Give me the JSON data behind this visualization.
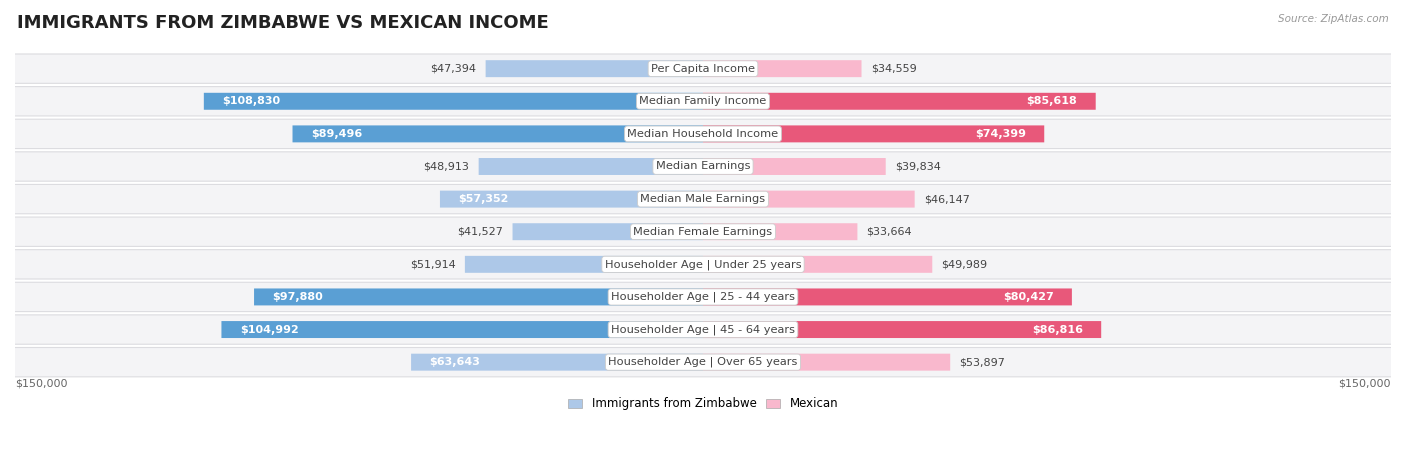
{
  "title": "IMMIGRANTS FROM ZIMBABWE VS MEXICAN INCOME",
  "source": "Source: ZipAtlas.com",
  "categories": [
    "Per Capita Income",
    "Median Family Income",
    "Median Household Income",
    "Median Earnings",
    "Median Male Earnings",
    "Median Female Earnings",
    "Householder Age | Under 25 years",
    "Householder Age | 25 - 44 years",
    "Householder Age | 45 - 64 years",
    "Householder Age | Over 65 years"
  ],
  "zimbabwe_values": [
    47394,
    108830,
    89496,
    48913,
    57352,
    41527,
    51914,
    97880,
    104992,
    63643
  ],
  "mexican_values": [
    34559,
    85618,
    74399,
    39834,
    46147,
    33664,
    49989,
    80427,
    86816,
    53897
  ],
  "zim_color_light": "#adc8e8",
  "zim_color_dark": "#5a9fd4",
  "mex_color_light": "#f9b8cd",
  "mex_color_dark": "#e8587a",
  "zim_threshold": 70000,
  "mex_threshold": 60000,
  "max_value": 150000,
  "zimbabwe_label": "Immigrants from Zimbabwe",
  "mexican_label": "Mexican",
  "xlabel_left": "$150,000",
  "xlabel_right": "$150,000",
  "bar_height": 0.52,
  "row_card_color": "#f4f4f6",
  "row_card_edge": "#dcdce0",
  "background_color": "#ffffff",
  "title_fontsize": 13,
  "label_fontsize": 8.2,
  "value_fontsize": 8.0
}
